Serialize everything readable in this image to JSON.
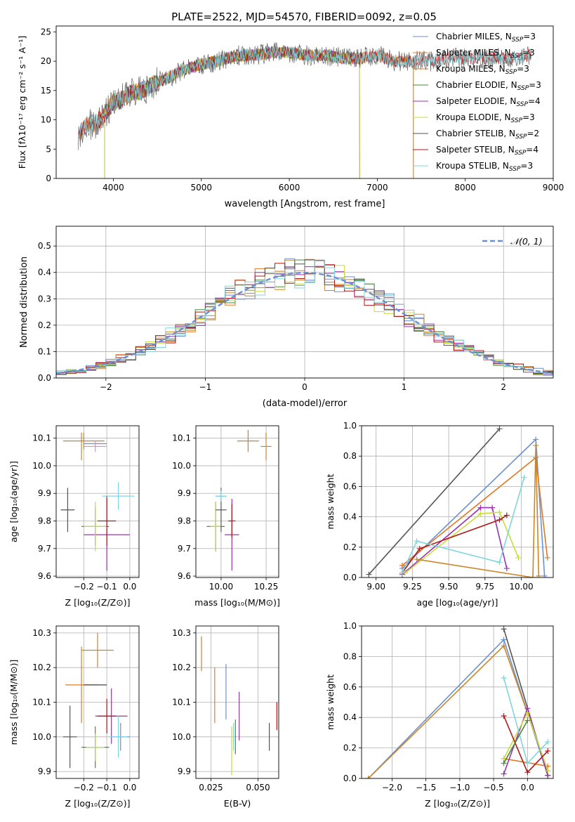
{
  "figure": {
    "title": "PLATE=2522, MJD=54570, FIBERID=0092, z=0.05"
  },
  "colors": {
    "Chabrier MILES": "#6a8fd4",
    "Salpeter MILES": "#e07a25",
    "Kroupa MILES": "#c9862a",
    "Chabrier ELODIE": "#4a8a3a",
    "Salpeter ELODIE": "#9a30b0",
    "Kroupa ELODIE": "#c8dc3a",
    "Chabrier STELIB": "#555555",
    "Salpeter STELIB": "#b01818",
    "Kroupa STELIB": "#7fd6de"
  },
  "chart_data": [
    {
      "id": "spectrum",
      "type": "line",
      "title": "PLATE=2522, MJD=54570, FIBERID=0092, z=0.05",
      "xlabel": "wavelength [Angstrom, rest frame]",
      "ylabel": "Flux [fλ10⁻¹⁷ erg cm⁻² s⁻¹ A⁻¹]",
      "xlim": [
        3350,
        9000
      ],
      "ylim": [
        0,
        26
      ],
      "xticks": [
        4000,
        5000,
        6000,
        7000,
        8000,
        9000
      ],
      "yticks": [
        0,
        5,
        10,
        15,
        20,
        25
      ],
      "legend_position": "top-right",
      "legend": [
        {
          "label": "Chabrier MILES, N",
          "sub": "SSP",
          "tail": "=3"
        },
        {
          "label": "Salpeter MILES, N",
          "sub": "SSP",
          "tail": "=3"
        },
        {
          "label": "Kroupa MILES, N",
          "sub": "SSP",
          "tail": "=3"
        },
        {
          "label": "Chabrier ELODIE, N",
          "sub": "SSP",
          "tail": "=3"
        },
        {
          "label": "Salpeter ELODIE, N",
          "sub": "SSP",
          "tail": "=4"
        },
        {
          "label": "Kroupa ELODIE, N",
          "sub": "SSP",
          "tail": "=3"
        },
        {
          "label": "Chabrier STELIB, N",
          "sub": "SSP",
          "tail": "=2"
        },
        {
          "label": "Salpeter STELIB, N",
          "sub": "SSP",
          "tail": "=4"
        },
        {
          "label": "Kroupa STELIB, N",
          "sub": "SSP",
          "tail": "=3"
        }
      ],
      "continuum": {
        "x": [
          3600,
          3700,
          3800,
          3900,
          4000,
          4100,
          4200,
          4300,
          4400,
          4500,
          4600,
          4800,
          5000,
          5200,
          5400,
          5600,
          5800,
          6000,
          6200,
          6400,
          6600,
          6800,
          7000,
          7200,
          7400,
          7600,
          7800,
          8000,
          8200,
          8400,
          8600,
          8750
        ],
        "y": [
          7.5,
          9.0,
          9.5,
          11.0,
          13.0,
          13.5,
          14.5,
          14.8,
          15.5,
          16.5,
          17.0,
          18.5,
          19.5,
          20.0,
          21.0,
          21.0,
          21.5,
          21.5,
          21.0,
          21.0,
          20.5,
          20.5,
          21.0,
          20.0,
          20.0,
          20.0,
          20.5,
          20.5,
          20.5,
          20.5,
          20.5,
          21.0
        ]
      },
      "model_ranges": {
        "Chabrier MILES": [
          3600,
          7410
        ],
        "Salpeter MILES": [
          3600,
          7410
        ],
        "Kroupa MILES": [
          3600,
          7410
        ],
        "Chabrier ELODIE": [
          3900,
          6800
        ],
        "Salpeter ELODIE": [
          3900,
          6800
        ],
        "Kroupa ELODIE": [
          3900,
          6800
        ],
        "Chabrier STELIB": [
          3600,
          8750
        ],
        "Salpeter STELIB": [
          3600,
          8750
        ],
        "Kroupa STELIB": [
          3600,
          8750
        ]
      }
    },
    {
      "id": "residuals",
      "type": "line",
      "xlabel": "(data-model)/error",
      "ylabel": "Normed distribution",
      "xlim": [
        -2.5,
        2.5
      ],
      "ylim": [
        0,
        0.575
      ],
      "xticks": [
        -2,
        -1,
        0,
        1,
        2
      ],
      "yticks": [
        0.0,
        0.1,
        0.2,
        0.3,
        0.4,
        0.5
      ],
      "grid": true,
      "legend_position": "top-right",
      "legend": [
        {
          "label": "𝒩(0, 1)",
          "style": "dashed"
        }
      ],
      "gaussian": {
        "mu": 0,
        "sigma": 1
      },
      "hist_bin_width": 0.1
    },
    {
      "id": "age_vs_Z",
      "type": "scatter",
      "xlabel": "Z [log₁₀(Z/Z⊙)]",
      "ylabel": "age  [log₁₀(age/yr)]",
      "xlim": [
        -0.32,
        0.04
      ],
      "ylim": [
        9.595,
        10.145
      ],
      "xticks": [
        -0.2,
        -0.1,
        0.0
      ],
      "yticks": [
        9.6,
        9.7,
        9.8,
        9.9,
        10.0,
        10.1
      ],
      "grid": true,
      "points": [
        {
          "model": "Chabrier MILES",
          "x": -0.15,
          "y": 10.08,
          "xerr": 0.05,
          "yerr": 0.0
        },
        {
          "model": "Salpeter MILES",
          "x": -0.2,
          "y": 10.09,
          "xerr": 0.09,
          "yerr": 0.03
        },
        {
          "model": "Kroupa MILES",
          "x": -0.21,
          "y": 10.07,
          "xerr": 0.0,
          "yerr": 0.05
        },
        {
          "model": "Chabrier ELODIE",
          "x": -0.15,
          "y": 9.78,
          "xerr": 0.06,
          "yerr": 0.07
        },
        {
          "model": "Salpeter ELODIE",
          "x": -0.1,
          "y": 9.75,
          "xerr": 0.1,
          "yerr": 0.13
        },
        {
          "model": "Kroupa ELODIE",
          "x": -0.15,
          "y": 9.78,
          "xerr": 0.05,
          "yerr": 0.09
        },
        {
          "model": "Chabrier STELIB",
          "x": -0.27,
          "y": 9.84,
          "xerr": 0.03,
          "yerr": 0.08
        },
        {
          "model": "Salpeter STELIB",
          "x": -0.1,
          "y": 9.8,
          "xerr": 0.04,
          "yerr": 0.09
        },
        {
          "model": "Kroupa STELIB",
          "x": -0.05,
          "y": 9.89,
          "xerr": 0.07,
          "yerr": 0.05
        },
        {
          "model": "Kroupa MILES pink",
          "x": -0.15,
          "y": 10.07,
          "xerr": 0.05,
          "yerr": 0.02
        }
      ]
    },
    {
      "id": "age_vs_mass",
      "type": "scatter",
      "xlabel": "mass [log₁₀(M/M⊙)]",
      "ylabel": "",
      "xlim": [
        9.86,
        10.32
      ],
      "ylim": [
        9.595,
        10.145
      ],
      "xticks": [
        10.0,
        10.25
      ],
      "yticks": [
        9.6,
        9.7,
        9.8,
        9.9,
        10.0,
        10.1
      ],
      "grid": true,
      "points": [
        {
          "model": "Chabrier MILES",
          "x": 10.0,
          "y": 9.89,
          "xerr": 0.03,
          "yerr": 0.02
        },
        {
          "model": "Salpeter MILES",
          "x": 10.15,
          "y": 10.09,
          "xerr": 0.06,
          "yerr": 0.04
        },
        {
          "model": "Kroupa MILES",
          "x": 10.25,
          "y": 10.07,
          "xerr": 0.03,
          "yerr": 0.05
        },
        {
          "model": "Chabrier ELODIE",
          "x": 9.97,
          "y": 9.78,
          "xerr": 0.05,
          "yerr": 0.09
        },
        {
          "model": "Salpeter ELODIE",
          "x": 10.06,
          "y": 9.75,
          "xerr": 0.04,
          "yerr": 0.13
        },
        {
          "model": "Kroupa ELODIE",
          "x": 9.97,
          "y": 9.78,
          "xerr": 0.03,
          "yerr": 0.09
        },
        {
          "model": "Chabrier STELIB",
          "x": 10.0,
          "y": 9.84,
          "xerr": 0.03,
          "yerr": 0.08
        },
        {
          "model": "Salpeter STELIB",
          "x": 10.06,
          "y": 9.8,
          "xerr": 0.02,
          "yerr": 0.06
        },
        {
          "model": "Kroupa STELIB",
          "x": 10.0,
          "y": 9.89,
          "xerr": 0.03,
          "yerr": 0.02
        }
      ]
    },
    {
      "id": "weight_vs_age",
      "type": "line",
      "xlabel": "age  [log₁₀(age/yr)]",
      "ylabel": "mass weight",
      "xlim": [
        8.9,
        10.22
      ],
      "ylim": [
        0,
        1.0
      ],
      "xticks": [
        9.0,
        9.25,
        9.5,
        9.75,
        10.0
      ],
      "yticks": [
        0.0,
        0.2,
        0.4,
        0.6,
        0.8,
        1.0
      ],
      "grid": true,
      "series": [
        {
          "model": "Chabrier STELIB",
          "x": [
            8.95,
            9.85
          ],
          "y": [
            0.02,
            0.98
          ]
        },
        {
          "model": "Chabrier MILES",
          "x": [
            9.18,
            10.1,
            10.16
          ],
          "y": [
            0.06,
            0.91,
            0.01
          ]
        },
        {
          "model": "Salpeter MILES",
          "x": [
            9.18,
            10.1,
            10.18
          ],
          "y": [
            0.08,
            0.79,
            0.13
          ]
        },
        {
          "model": "Salpeter ELODIE",
          "x": [
            9.18,
            9.72,
            9.8,
            9.9
          ],
          "y": [
            0.02,
            0.46,
            0.46,
            0.06
          ]
        },
        {
          "model": "Kroupa ELODIE",
          "x": [
            9.2,
            9.72,
            9.85,
            9.98
          ],
          "y": [
            0.03,
            0.42,
            0.43,
            0.13
          ]
        },
        {
          "model": "Salpeter STELIB",
          "x": [
            9.18,
            9.3,
            9.85,
            9.9
          ],
          "y": [
            0.03,
            0.19,
            0.38,
            0.41
          ]
        },
        {
          "model": "Kroupa STELIB",
          "x": [
            9.18,
            9.28,
            9.85,
            10.02
          ],
          "y": [
            0.03,
            0.24,
            0.1,
            0.66
          ]
        },
        {
          "model": "Kroupa MILES",
          "x": [
            9.28,
            10.08,
            10.1,
            10.12
          ],
          "y": [
            0.12,
            0.0,
            0.87,
            0.01
          ]
        }
      ]
    },
    {
      "id": "mass_vs_Z",
      "type": "scatter",
      "xlabel": "Z [log₁₀(Z/Z⊙)]",
      "ylabel": "mass [log₁₀(M/M⊙)]",
      "xlim": [
        -0.32,
        0.04
      ],
      "ylim": [
        9.88,
        10.32
      ],
      "xticks": [
        -0.2,
        -0.1,
        0.0
      ],
      "yticks": [
        9.9,
        10.0,
        10.1,
        10.2,
        10.3
      ],
      "grid": true,
      "points": [
        {
          "model": "Chabrier MILES",
          "x": -0.04,
          "y": 10.0,
          "xerr": 0.04,
          "yerr": 0.04
        },
        {
          "model": "Salpeter MILES",
          "x": -0.21,
          "y": 10.15,
          "xerr": 0.07,
          "yerr": 0.11
        },
        {
          "model": "Kroupa MILES",
          "x": -0.14,
          "y": 10.25,
          "xerr": 0.07,
          "yerr": 0.05
        },
        {
          "model": "Chabrier ELODIE",
          "x": -0.15,
          "y": 9.97,
          "xerr": 0.06,
          "yerr": 0.06
        },
        {
          "model": "Salpeter ELODIE",
          "x": -0.08,
          "y": 10.06,
          "xerr": 0.07,
          "yerr": 0.08
        },
        {
          "model": "Kroupa ELODIE",
          "x": -0.15,
          "y": 9.97,
          "xerr": 0.04,
          "yerr": 0.04
        },
        {
          "model": "Chabrier STELIB",
          "x": -0.26,
          "y": 10.0,
          "xerr": 0.03,
          "yerr": 0.09
        },
        {
          "model": "Salpeter STELIB",
          "x": -0.1,
          "y": 10.06,
          "xerr": 0.04,
          "yerr": 0.05
        },
        {
          "model": "Kroupa STELIB",
          "x": -0.05,
          "y": 10.0,
          "xerr": 0.04,
          "yerr": 0.06
        },
        {
          "model": "Chabrier ELODIE dark",
          "x": -0.15,
          "y": 10.15,
          "xerr": 0.05,
          "yerr": 0.0
        }
      ]
    },
    {
      "id": "mass_vs_ebv",
      "type": "scatter",
      "xlabel": "E(B-V)",
      "ylabel": "",
      "xlim": [
        0.017,
        0.061
      ],
      "ylim": [
        9.88,
        10.32
      ],
      "xticks": [
        0.025,
        0.05
      ],
      "yticks": [
        9.9,
        10.0,
        10.1,
        10.2,
        10.3
      ],
      "grid": true,
      "points": [
        {
          "model": "Chabrier MILES",
          "x": 0.033,
          "y": 10.13,
          "xerr": 0.0,
          "yerr": 0.08
        },
        {
          "model": "Salpeter MILES",
          "x": 0.027,
          "y": 10.12,
          "xerr": 0.0,
          "yerr": 0.08
        },
        {
          "model": "Kroupa MILES",
          "x": 0.02,
          "y": 10.24,
          "xerr": 0.0,
          "yerr": 0.05
        },
        {
          "model": "Chabrier ELODIE",
          "x": 0.038,
          "y": 10.0,
          "xerr": 0.0,
          "yerr": 0.05
        },
        {
          "model": "Salpeter ELODIE",
          "x": 0.04,
          "y": 10.06,
          "xerr": 0.0,
          "yerr": 0.07
        },
        {
          "model": "Kroupa ELODIE",
          "x": 0.036,
          "y": 9.96,
          "xerr": 0.0,
          "yerr": 0.07
        },
        {
          "model": "Chabrier STELIB",
          "x": 0.056,
          "y": 10.0,
          "xerr": 0.0,
          "yerr": 0.04
        },
        {
          "model": "Salpeter STELIB",
          "x": 0.06,
          "y": 10.06,
          "xerr": 0.0,
          "yerr": 0.04
        },
        {
          "model": "Kroupa STELIB",
          "x": 0.037,
          "y": 10.0,
          "xerr": 0.0,
          "yerr": 0.04
        }
      ]
    },
    {
      "id": "weight_vs_Z",
      "type": "line",
      "xlabel": "Z [log₁₀(Z/Z⊙)]",
      "ylabel": "mass weight",
      "xlim": [
        -2.45,
        0.38
      ],
      "ylim": [
        0,
        1.0
      ],
      "xticks": [
        -2.0,
        -1.5,
        -1.0,
        -0.5,
        0.0
      ],
      "yticks": [
        0.0,
        0.2,
        0.4,
        0.6,
        0.8,
        1.0
      ],
      "grid": true,
      "series": [
        {
          "model": "Chabrier MILES",
          "x": [
            -2.35,
            -0.35,
            0.3
          ],
          "y": [
            0.0,
            0.91,
            0.02
          ]
        },
        {
          "model": "Kroupa MILES",
          "x": [
            -2.35,
            -0.35,
            0.3
          ],
          "y": [
            0.0,
            0.87,
            0.05
          ]
        },
        {
          "model": "Chabrier STELIB",
          "x": [
            -0.35,
            0.3
          ],
          "y": [
            0.98,
            0.02
          ]
        },
        {
          "model": "Salpeter MILES",
          "x": [
            -0.35,
            0.3
          ],
          "y": [
            0.13,
            0.08
          ]
        },
        {
          "model": "Salpeter ELODIE",
          "x": [
            -0.35,
            0.0,
            0.3
          ],
          "y": [
            0.03,
            0.46,
            0.02
          ]
        },
        {
          "model": "Kroupa ELODIE",
          "x": [
            -0.35,
            0.0,
            0.3
          ],
          "y": [
            0.13,
            0.43,
            0.05
          ]
        },
        {
          "model": "Salpeter STELIB",
          "x": [
            -0.35,
            0.0,
            0.3
          ],
          "y": [
            0.41,
            0.04,
            0.18
          ]
        },
        {
          "model": "Kroupa STELIB",
          "x": [
            -0.35,
            0.0,
            0.3
          ],
          "y": [
            0.66,
            0.1,
            0.24
          ]
        },
        {
          "model": "Chabrier ELODIE",
          "x": [
            -0.35,
            0.0
          ],
          "y": [
            0.1,
            0.38
          ]
        }
      ]
    }
  ]
}
